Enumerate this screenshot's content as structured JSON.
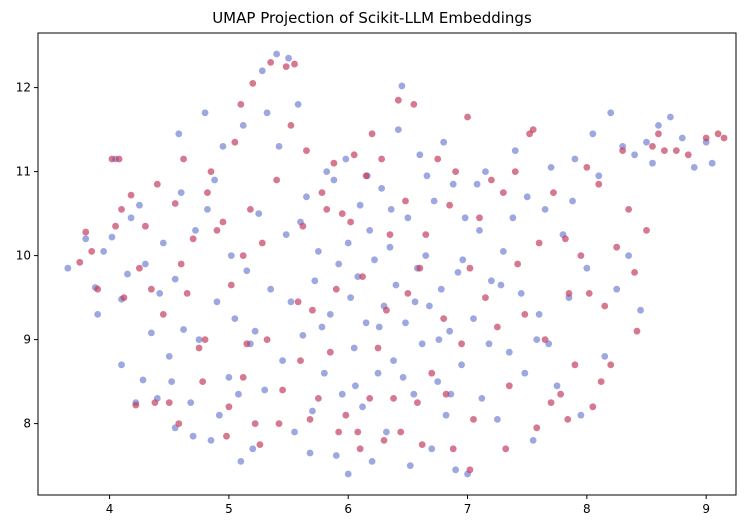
{
  "chart_data": {
    "type": "scatter",
    "title": "UMAP Projection of Scikit-LLM Embeddings",
    "xlabel": "",
    "ylabel": "",
    "xlim": [
      3.4,
      9.25
    ],
    "ylim": [
      7.15,
      12.65
    ],
    "x_ticks": [
      "4",
      "5",
      "6",
      "7",
      "8",
      "9"
    ],
    "y_ticks": [
      "8",
      "9",
      "10",
      "11",
      "12"
    ],
    "grid": false,
    "legend": "none",
    "colors": {
      "blue": "#6e7fd1",
      "red": "#c2385a"
    },
    "series": [
      {
        "color": "blue",
        "points": [
          [
            3.65,
            9.85
          ],
          [
            3.8,
            10.2
          ],
          [
            3.88,
            9.62
          ],
          [
            3.9,
            9.3
          ],
          [
            3.95,
            10.05
          ],
          [
            4.02,
            10.22
          ],
          [
            4.05,
            11.15
          ],
          [
            4.1,
            9.48
          ],
          [
            4.1,
            8.7
          ],
          [
            4.15,
            9.78
          ],
          [
            4.18,
            10.45
          ],
          [
            4.22,
            8.25
          ],
          [
            4.28,
            8.52
          ],
          [
            4.3,
            9.9
          ],
          [
            4.35,
            9.08
          ],
          [
            4.4,
            8.3
          ],
          [
            4.45,
            10.15
          ],
          [
            4.5,
            8.8
          ],
          [
            4.52,
            8.5
          ],
          [
            4.55,
            9.72
          ],
          [
            4.55,
            7.95
          ],
          [
            4.6,
            10.75
          ],
          [
            4.62,
            9.12
          ],
          [
            4.68,
            8.25
          ],
          [
            4.72,
            10.3
          ],
          [
            4.75,
            9.0
          ],
          [
            4.8,
            11.7
          ],
          [
            4.82,
            10.55
          ],
          [
            4.85,
            7.8
          ],
          [
            4.9,
            9.45
          ],
          [
            4.92,
            8.1
          ],
          [
            4.95,
            11.3
          ],
          [
            5.0,
            8.55
          ],
          [
            5.02,
            10.0
          ],
          [
            5.05,
            9.25
          ],
          [
            5.1,
            7.55
          ],
          [
            5.12,
            11.55
          ],
          [
            5.15,
            9.82
          ],
          [
            5.18,
            8.95
          ],
          [
            5.2,
            7.7
          ],
          [
            5.25,
            10.5
          ],
          [
            5.28,
            12.2
          ],
          [
            5.3,
            8.4
          ],
          [
            5.35,
            9.6
          ],
          [
            5.4,
            12.4
          ],
          [
            5.42,
            11.3
          ],
          [
            5.45,
            8.75
          ],
          [
            5.48,
            10.25
          ],
          [
            5.5,
            12.35
          ],
          [
            5.52,
            9.45
          ],
          [
            5.55,
            7.9
          ],
          [
            5.58,
            11.8
          ],
          [
            5.62,
            9.05
          ],
          [
            5.65,
            10.7
          ],
          [
            5.7,
            8.15
          ],
          [
            5.72,
            9.7
          ],
          [
            5.75,
            10.05
          ],
          [
            5.8,
            8.6
          ],
          [
            5.82,
            11.0
          ],
          [
            5.85,
            9.3
          ],
          [
            5.88,
            10.9
          ],
          [
            5.9,
            7.62
          ],
          [
            5.92,
            9.9
          ],
          [
            5.95,
            8.35
          ],
          [
            6.0,
            10.15
          ],
          [
            6.0,
            7.4
          ],
          [
            6.02,
            9.5
          ],
          [
            6.05,
            8.9
          ],
          [
            6.08,
            9.75
          ],
          [
            6.1,
            10.6
          ],
          [
            6.12,
            8.2
          ],
          [
            6.15,
            9.2
          ],
          [
            6.18,
            10.3
          ],
          [
            6.2,
            7.55
          ],
          [
            6.22,
            9.95
          ],
          [
            6.25,
            8.6
          ],
          [
            6.28,
            10.8
          ],
          [
            6.3,
            9.4
          ],
          [
            6.32,
            7.9
          ],
          [
            6.35,
            10.1
          ],
          [
            6.38,
            8.75
          ],
          [
            6.4,
            9.65
          ],
          [
            6.42,
            11.5
          ],
          [
            6.45,
            12.02
          ],
          [
            6.48,
            9.2
          ],
          [
            6.5,
            10.45
          ],
          [
            6.52,
            7.5
          ],
          [
            6.55,
            8.35
          ],
          [
            6.58,
            9.85
          ],
          [
            6.6,
            11.2
          ],
          [
            6.62,
            8.95
          ],
          [
            6.65,
            10.0
          ],
          [
            6.68,
            9.4
          ],
          [
            6.7,
            7.7
          ],
          [
            6.72,
            10.65
          ],
          [
            6.75,
            8.5
          ],
          [
            6.78,
            9.6
          ],
          [
            6.8,
            11.35
          ],
          [
            6.82,
            8.1
          ],
          [
            6.85,
            9.1
          ],
          [
            6.88,
            10.85
          ],
          [
            6.9,
            7.45
          ],
          [
            6.92,
            9.8
          ],
          [
            6.95,
            8.7
          ],
          [
            6.98,
            10.45
          ],
          [
            7.0,
            7.4
          ],
          [
            7.05,
            9.25
          ],
          [
            7.1,
            10.3
          ],
          [
            7.12,
            8.3
          ],
          [
            7.15,
            11.0
          ],
          [
            7.2,
            9.7
          ],
          [
            7.25,
            8.05
          ],
          [
            7.3,
            10.05
          ],
          [
            7.35,
            8.85
          ],
          [
            7.4,
            11.25
          ],
          [
            7.45,
            9.55
          ],
          [
            7.5,
            10.7
          ],
          [
            7.55,
            7.8
          ],
          [
            7.6,
            9.3
          ],
          [
            7.65,
            10.55
          ],
          [
            7.7,
            11.05
          ],
          [
            7.75,
            8.45
          ],
          [
            7.8,
            10.25
          ],
          [
            7.85,
            9.5
          ],
          [
            7.9,
            11.15
          ],
          [
            7.95,
            8.1
          ],
          [
            8.0,
            9.85
          ],
          [
            8.05,
            11.45
          ],
          [
            8.1,
            10.95
          ],
          [
            8.15,
            8.8
          ],
          [
            8.2,
            11.7
          ],
          [
            8.25,
            9.6
          ],
          [
            8.3,
            11.3
          ],
          [
            8.35,
            10.0
          ],
          [
            8.4,
            11.2
          ],
          [
            8.45,
            9.35
          ],
          [
            8.5,
            11.35
          ],
          [
            8.55,
            11.1
          ],
          [
            8.6,
            11.55
          ],
          [
            8.7,
            11.65
          ],
          [
            8.8,
            11.4
          ],
          [
            8.9,
            11.05
          ],
          [
            9.0,
            11.35
          ],
          [
            9.05,
            11.1
          ],
          [
            4.25,
            10.6
          ],
          [
            4.42,
            9.55
          ],
          [
            4.58,
            11.45
          ],
          [
            4.7,
            7.85
          ],
          [
            4.88,
            10.9
          ],
          [
            5.08,
            8.35
          ],
          [
            5.22,
            9.1
          ],
          [
            5.32,
            11.7
          ],
          [
            5.6,
            10.4
          ],
          [
            5.68,
            7.65
          ],
          [
            5.78,
            9.15
          ],
          [
            5.98,
            11.15
          ],
          [
            6.06,
            8.45
          ],
          [
            6.16,
            10.95
          ],
          [
            6.26,
            9.15
          ],
          [
            6.36,
            10.55
          ],
          [
            6.46,
            8.55
          ],
          [
            6.56,
            9.45
          ],
          [
            6.66,
            10.95
          ],
          [
            6.76,
            9.0
          ],
          [
            6.86,
            8.35
          ],
          [
            6.96,
            9.95
          ],
          [
            7.08,
            10.85
          ],
          [
            7.18,
            8.95
          ],
          [
            7.28,
            9.65
          ],
          [
            7.38,
            10.45
          ],
          [
            7.48,
            8.6
          ],
          [
            7.58,
            9.0
          ],
          [
            7.68,
            8.95
          ],
          [
            7.88,
            10.65
          ]
        ]
      },
      {
        "color": "red",
        "points": [
          [
            3.75,
            9.92
          ],
          [
            3.8,
            10.28
          ],
          [
            3.85,
            10.05
          ],
          [
            3.9,
            9.6
          ],
          [
            4.02,
            11.15
          ],
          [
            4.08,
            11.15
          ],
          [
            4.1,
            10.55
          ],
          [
            4.12,
            9.5
          ],
          [
            4.18,
            10.72
          ],
          [
            4.22,
            8.22
          ],
          [
            4.25,
            9.85
          ],
          [
            4.3,
            10.35
          ],
          [
            4.35,
            9.6
          ],
          [
            4.4,
            10.85
          ],
          [
            4.45,
            9.3
          ],
          [
            4.5,
            8.25
          ],
          [
            4.55,
            10.62
          ],
          [
            4.6,
            9.9
          ],
          [
            4.62,
            11.15
          ],
          [
            4.65,
            9.55
          ],
          [
            4.7,
            10.2
          ],
          [
            4.75,
            8.9
          ],
          [
            4.8,
            9.0
          ],
          [
            4.82,
            10.75
          ],
          [
            4.85,
            11.0
          ],
          [
            4.9,
            10.3
          ],
          [
            4.95,
            10.4
          ],
          [
            5.0,
            8.2
          ],
          [
            5.02,
            9.65
          ],
          [
            5.05,
            11.35
          ],
          [
            5.1,
            11.8
          ],
          [
            5.12,
            10.0
          ],
          [
            5.15,
            8.95
          ],
          [
            5.18,
            10.55
          ],
          [
            5.2,
            12.05
          ],
          [
            5.22,
            8.0
          ],
          [
            5.28,
            10.15
          ],
          [
            5.32,
            9.0
          ],
          [
            5.35,
            12.3
          ],
          [
            5.4,
            10.9
          ],
          [
            5.45,
            8.4
          ],
          [
            5.48,
            12.25
          ],
          [
            5.52,
            11.55
          ],
          [
            5.55,
            12.28
          ],
          [
            5.58,
            9.45
          ],
          [
            5.6,
            8.75
          ],
          [
            5.62,
            10.35
          ],
          [
            5.65,
            11.25
          ],
          [
            5.7,
            9.35
          ],
          [
            5.75,
            8.3
          ],
          [
            5.78,
            10.75
          ],
          [
            5.82,
            10.55
          ],
          [
            5.85,
            8.85
          ],
          [
            5.88,
            11.1
          ],
          [
            5.9,
            9.6
          ],
          [
            5.95,
            10.5
          ],
          [
            5.98,
            8.1
          ],
          [
            6.02,
            10.4
          ],
          [
            6.05,
            11.2
          ],
          [
            6.08,
            7.9
          ],
          [
            6.12,
            9.75
          ],
          [
            6.15,
            10.95
          ],
          [
            6.18,
            8.3
          ],
          [
            6.2,
            11.45
          ],
          [
            6.25,
            8.9
          ],
          [
            6.28,
            11.15
          ],
          [
            6.32,
            9.35
          ],
          [
            6.35,
            10.25
          ],
          [
            6.38,
            8.3
          ],
          [
            6.42,
            11.85
          ],
          [
            6.48,
            10.65
          ],
          [
            6.5,
            9.55
          ],
          [
            6.55,
            11.8
          ],
          [
            6.58,
            8.25
          ],
          [
            6.6,
            9.85
          ],
          [
            6.65,
            10.25
          ],
          [
            6.7,
            8.6
          ],
          [
            6.75,
            11.15
          ],
          [
            6.8,
            9.25
          ],
          [
            6.82,
            8.35
          ],
          [
            6.85,
            10.6
          ],
          [
            6.9,
            11.0
          ],
          [
            6.95,
            8.95
          ],
          [
            7.0,
            11.65
          ],
          [
            7.02,
            9.85
          ],
          [
            7.05,
            8.05
          ],
          [
            7.1,
            10.45
          ],
          [
            7.15,
            9.5
          ],
          [
            7.2,
            10.9
          ],
          [
            7.25,
            9.15
          ],
          [
            7.3,
            10.75
          ],
          [
            7.35,
            8.45
          ],
          [
            7.4,
            11.0
          ],
          [
            7.42,
            9.9
          ],
          [
            7.48,
            9.3
          ],
          [
            7.52,
            11.45
          ],
          [
            7.55,
            11.5
          ],
          [
            7.6,
            10.15
          ],
          [
            7.65,
            9.0
          ],
          [
            7.7,
            8.25
          ],
          [
            7.72,
            10.75
          ],
          [
            7.78,
            8.35
          ],
          [
            7.82,
            10.2
          ],
          [
            7.85,
            9.55
          ],
          [
            7.9,
            8.7
          ],
          [
            7.95,
            10.0
          ],
          [
            8.0,
            11.05
          ],
          [
            8.02,
            9.55
          ],
          [
            8.05,
            8.2
          ],
          [
            8.1,
            10.85
          ],
          [
            8.15,
            9.4
          ],
          [
            8.2,
            8.7
          ],
          [
            8.25,
            10.1
          ],
          [
            8.3,
            11.25
          ],
          [
            8.35,
            10.55
          ],
          [
            8.4,
            9.8
          ],
          [
            8.42,
            9.1
          ],
          [
            8.5,
            10.3
          ],
          [
            8.55,
            11.3
          ],
          [
            8.6,
            11.45
          ],
          [
            8.65,
            11.25
          ],
          [
            8.75,
            11.25
          ],
          [
            8.85,
            11.2
          ],
          [
            9.0,
            11.4
          ],
          [
            9.1,
            11.45
          ],
          [
            9.15,
            11.4
          ],
          [
            4.05,
            10.35
          ],
          [
            4.38,
            8.25
          ],
          [
            4.58,
            8.0
          ],
          [
            4.78,
            8.5
          ],
          [
            4.98,
            7.85
          ],
          [
            5.12,
            8.55
          ],
          [
            5.26,
            7.75
          ],
          [
            5.42,
            8.0
          ],
          [
            5.68,
            8.05
          ],
          [
            5.92,
            7.9
          ],
          [
            6.1,
            7.7
          ],
          [
            6.3,
            7.8
          ],
          [
            6.44,
            7.9
          ],
          [
            6.62,
            7.75
          ],
          [
            6.88,
            7.7
          ],
          [
            7.02,
            7.45
          ],
          [
            7.32,
            7.7
          ],
          [
            7.58,
            7.95
          ],
          [
            7.84,
            8.05
          ],
          [
            8.12,
            8.5
          ]
        ]
      }
    ]
  }
}
